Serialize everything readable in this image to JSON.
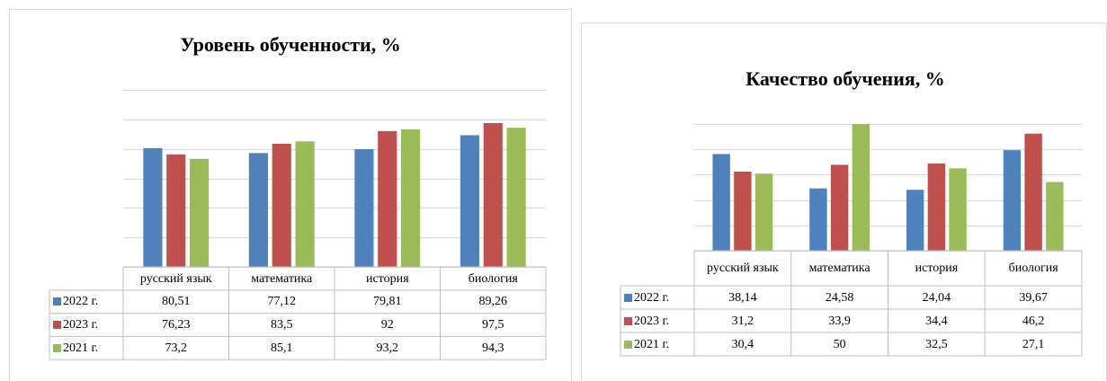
{
  "chart_data": [
    {
      "type": "bar",
      "title": "Уровень обученности, %",
      "categories": [
        "русский язык",
        "математика",
        "история",
        "биология"
      ],
      "series": [
        {
          "name": "2022 г.",
          "color": "#4f81bd",
          "values": [
            80.51,
            77.12,
            79.81,
            89.26
          ],
          "value_labels": [
            "80,51",
            "77,12",
            "79,81",
            "89,26"
          ]
        },
        {
          "name": "2023 г.",
          "color": "#c0504d",
          "values": [
            76.23,
            83.5,
            92,
            97.5
          ],
          "value_labels": [
            "76,23",
            "83,5",
            "92",
            "97,5"
          ]
        },
        {
          "name": "2021 г.",
          "color": "#9bbb59",
          "values": [
            73.2,
            85.1,
            93.2,
            94.3
          ],
          "value_labels": [
            "73,2",
            "85,1",
            "93,2",
            "94,3"
          ]
        }
      ],
      "ylim": [
        0,
        120
      ],
      "yticks": [
        0,
        20,
        40,
        60,
        80,
        100,
        120
      ],
      "grid": true
    },
    {
      "type": "bar",
      "title": "Качество обучения, %",
      "categories": [
        "русский язык",
        "математика",
        "история",
        "биология"
      ],
      "series": [
        {
          "name": "2022 г.",
          "color": "#4f81bd",
          "values": [
            38.14,
            24.58,
            24.04,
            39.67
          ],
          "value_labels": [
            "38,14",
            "24,58",
            "24,04",
            "39,67"
          ]
        },
        {
          "name": "2023 г.",
          "color": "#c0504d",
          "values": [
            31.2,
            33.9,
            34.4,
            46.2
          ],
          "value_labels": [
            "31,2",
            "33,9",
            "34,4",
            "46,2"
          ]
        },
        {
          "name": "2021 г.",
          "color": "#9bbb59",
          "values": [
            30.4,
            50,
            32.5,
            27.1
          ],
          "value_labels": [
            "30,4",
            "50",
            "32,5",
            "27,1"
          ]
        }
      ],
      "ylim": [
        0,
        50
      ],
      "yticks": [
        0,
        10,
        20,
        30,
        40,
        50
      ],
      "grid": true
    }
  ]
}
